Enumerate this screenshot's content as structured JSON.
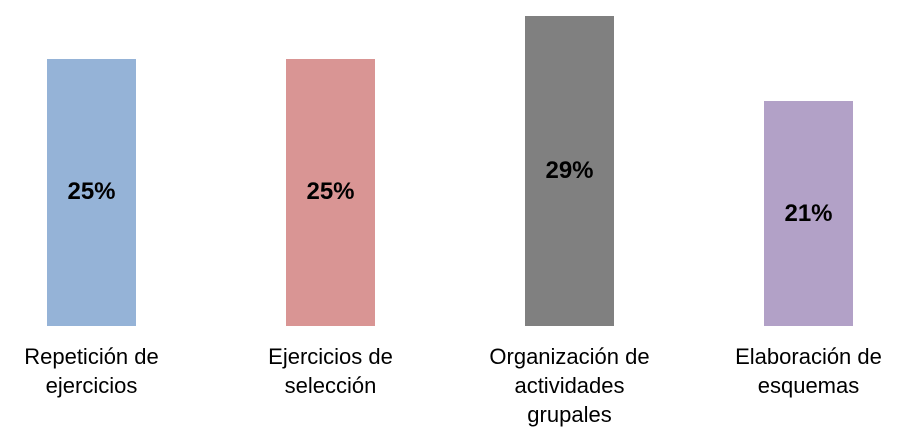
{
  "chart_data": {
    "type": "bar",
    "categories": [
      "Repetición de ejercicios",
      "Ejercicios de selección",
      "Organización de actividades grupales",
      "Elaboración de esquemas"
    ],
    "values": [
      25,
      25,
      29,
      21
    ],
    "value_labels": [
      "25%",
      "25%",
      "29%",
      "21%"
    ],
    "colors": [
      "#95b3d7",
      "#d99594",
      "#808080",
      "#b2a1c7"
    ]
  }
}
